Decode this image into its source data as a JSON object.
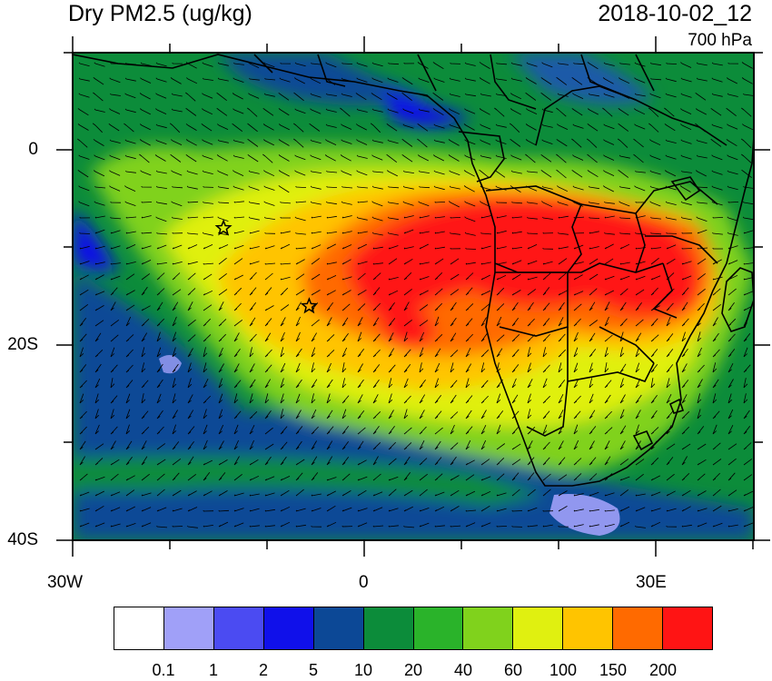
{
  "title": "Dry PM2.5 (ug/kg)",
  "datetime": "2018-10-02_12",
  "level": "700 hPa",
  "lat_labels": [
    "0",
    "20S",
    "40S"
  ],
  "lon_labels": [
    "30W",
    "0",
    "30E"
  ],
  "colorbar": {
    "colors": [
      "#ffffff",
      "#a0a0f8",
      "#4b4bf2",
      "#1010ea",
      "#0c4896",
      "#0c8c3a",
      "#2ab32a",
      "#80d21c",
      "#e0f010",
      "#ffc400",
      "#ff6a00",
      "#ff1414"
    ],
    "labels": [
      "0.1",
      "1",
      "2",
      "5",
      "10",
      "20",
      "40",
      "60",
      "100",
      "150",
      "200"
    ]
  },
  "markers": [
    {
      "name": "star-marker-1",
      "lon": -14.5,
      "lat": -8
    },
    {
      "name": "star-marker-2",
      "lon": -5.7,
      "lat": -16
    }
  ]
}
